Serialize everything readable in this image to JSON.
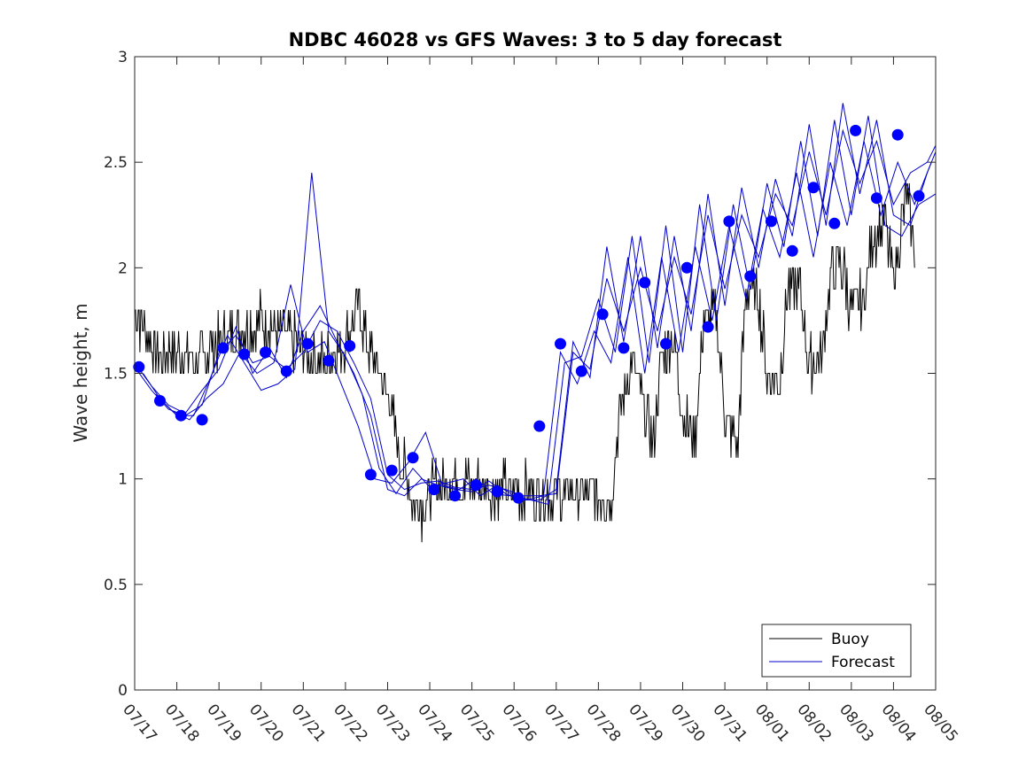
{
  "chart_data": {
    "type": "line",
    "title": "NDBC 46028 vs GFS Waves: 3 to 5 day forecast",
    "xlabel": "",
    "ylabel": "Wave height, m",
    "xlim": [
      0,
      19
    ],
    "ylim": [
      0,
      3
    ],
    "x_tick_labels": [
      "07/17",
      "07/18",
      "07/19",
      "07/20",
      "07/21",
      "07/22",
      "07/23",
      "07/24",
      "07/25",
      "07/26",
      "07/27",
      "07/28",
      "07/29",
      "07/30",
      "07/31",
      "08/01",
      "08/02",
      "08/03",
      "08/04",
      "08/05"
    ],
    "y_ticks": [
      0,
      0.5,
      1,
      1.5,
      2,
      2.5,
      3
    ],
    "y_tick_labels": [
      "0",
      "0.5",
      "1",
      "1.5",
      "2",
      "2.5",
      "3"
    ],
    "grid": false,
    "legend": {
      "placement": "bottom-right",
      "entries": [
        "Buoy",
        "Forecast"
      ]
    },
    "colors": {
      "buoy": "#000000",
      "forecast": "#0000cc",
      "markers": "#0000ff"
    },
    "buoy_keypoints": {
      "x": [
        0,
        0.5,
        1,
        1.5,
        2,
        2.5,
        3,
        3.5,
        4,
        4.5,
        5,
        5.3,
        5.6,
        6,
        6.3,
        6.6,
        6.9,
        7,
        7.5,
        8,
        8.5,
        9,
        9.5,
        10,
        10.5,
        11,
        11.3,
        11.5,
        11.8,
        12,
        12.3,
        12.5,
        12.8,
        13,
        13.3,
        13.5,
        13.8,
        14,
        14.3,
        14.5,
        14.8,
        15,
        15.3,
        15.5,
        15.8,
        16,
        16.3,
        16.5,
        16.8,
        17,
        17.3,
        17.5,
        17.8,
        18,
        18.3,
        18.5
      ],
      "y": [
        1.8,
        1.6,
        1.6,
        1.55,
        1.65,
        1.7,
        1.75,
        1.7,
        1.6,
        1.55,
        1.65,
        1.8,
        1.6,
        1.4,
        1.1,
        0.9,
        0.85,
        0.95,
        1.0,
        0.97,
        0.96,
        0.95,
        0.93,
        0.93,
        0.93,
        0.93,
        0.9,
        1.3,
        1.55,
        1.4,
        1.15,
        1.6,
        1.65,
        1.3,
        1.2,
        1.75,
        1.8,
        1.3,
        1.15,
        1.9,
        1.85,
        1.5,
        1.45,
        1.9,
        1.9,
        1.55,
        1.55,
        1.95,
        2.0,
        1.8,
        1.85,
        2.15,
        2.2,
        1.95,
        2.35,
        2.1
      ]
    },
    "forecast_points": {
      "x": [
        0.1,
        0.6,
        1.1,
        1.6,
        2.1,
        2.6,
        3.1,
        3.6,
        4.1,
        4.6,
        5.1,
        5.6,
        6.1,
        6.6,
        7.1,
        7.6,
        8.1,
        8.6,
        9.1,
        9.6,
        10.1,
        10.6,
        11.1,
        11.6,
        12.1,
        12.6,
        13.1,
        13.6,
        14.1,
        14.6,
        15.1,
        15.6,
        16.1,
        16.6,
        17.1,
        17.6,
        18.1,
        18.6
      ],
      "y": [
        1.53,
        1.37,
        1.3,
        1.28,
        1.62,
        1.59,
        1.6,
        1.51,
        1.64,
        1.56,
        1.63,
        1.02,
        1.04,
        1.1,
        0.95,
        0.92,
        0.97,
        0.94,
        0.91,
        1.25,
        1.64,
        1.51,
        1.78,
        1.62,
        1.93,
        1.64,
        2.0,
        1.72,
        2.22,
        1.96,
        2.22,
        2.08,
        2.38,
        2.21,
        2.65,
        2.33,
        2.63,
        2.34
      ]
    },
    "forecast_runs": [
      {
        "x": [
          0.0,
          0.4,
          0.8,
          1.2,
          1.6,
          2.0,
          2.4,
          2.8,
          3.2,
          3.6,
          4.0,
          4.4,
          4.8,
          5.2,
          5.6,
          6.0,
          6.4,
          6.8,
          7.2,
          7.6,
          8.0,
          8.4,
          8.8,
          9.2,
          9.6,
          10.0,
          10.4,
          10.8,
          11.2,
          11.6,
          12.0,
          12.4,
          12.8,
          13.2,
          13.6,
          14.0,
          14.4,
          14.8,
          15.2,
          15.6,
          16.0,
          16.4,
          16.8,
          17.2,
          17.6,
          18.0,
          18.4,
          18.8,
          19.0
        ],
        "y": [
          1.53,
          1.42,
          1.33,
          1.3,
          1.35,
          1.6,
          1.68,
          1.55,
          1.58,
          1.52,
          1.6,
          1.75,
          1.7,
          1.55,
          1.38,
          1.02,
          0.95,
          0.98,
          0.99,
          0.96,
          0.95,
          0.97,
          0.95,
          0.92,
          0.92,
          0.93,
          1.6,
          1.52,
          1.95,
          1.7,
          2.0,
          1.7,
          2.05,
          1.78,
          2.25,
          1.9,
          2.25,
          2.05,
          2.35,
          2.2,
          2.55,
          2.25,
          2.65,
          2.4,
          2.6,
          2.3,
          2.45,
          2.5,
          2.58
        ]
      },
      {
        "x": [
          0.0,
          0.4,
          0.8,
          1.2,
          1.6,
          2.0,
          2.4,
          2.8,
          3.2,
          3.6,
          4.0,
          4.4,
          4.8,
          5.2,
          5.6,
          6.0,
          6.4,
          6.8,
          7.2,
          7.6,
          8.0,
          8.4,
          8.8,
          9.2,
          9.6,
          10.0,
          10.4,
          10.8,
          11.2,
          11.6,
          12.0,
          12.4,
          12.8,
          13.2,
          13.6,
          14.0,
          14.4,
          14.8,
          15.2,
          15.6,
          16.0,
          16.4,
          16.8,
          17.2,
          17.6,
          18.0,
          18.4,
          18.8,
          19.0
        ],
        "y": [
          1.55,
          1.44,
          1.35,
          1.31,
          1.42,
          1.52,
          1.72,
          1.5,
          1.62,
          1.48,
          1.7,
          1.82,
          1.65,
          1.5,
          1.3,
          0.95,
          0.92,
          1.0,
          0.97,
          0.95,
          0.94,
          0.99,
          0.93,
          0.9,
          0.9,
          0.95,
          1.65,
          1.48,
          2.1,
          1.65,
          2.15,
          1.62,
          2.15,
          1.7,
          2.35,
          1.82,
          2.38,
          2.0,
          2.42,
          2.15,
          2.68,
          2.2,
          2.78,
          2.35,
          2.7,
          2.25,
          2.2,
          2.45,
          2.55
        ]
      },
      {
        "x": [
          0.2,
          0.6,
          1.0,
          1.4,
          1.8,
          2.2,
          2.6,
          3.0,
          3.4,
          3.8,
          4.2,
          4.6,
          5.0,
          5.4,
          5.8,
          6.2,
          6.6,
          7.0,
          7.4,
          7.8,
          8.2,
          8.6,
          9.0,
          9.4,
          9.8,
          10.2,
          10.6,
          11.0,
          11.4,
          11.8,
          12.2,
          12.6,
          13.0,
          13.4,
          13.8,
          14.2,
          14.6,
          15.0,
          15.4,
          15.8,
          16.2,
          16.6,
          17.0,
          17.4,
          17.8,
          18.2,
          18.6,
          19.0
        ],
        "y": [
          1.5,
          1.38,
          1.3,
          1.3,
          1.48,
          1.68,
          1.55,
          1.42,
          1.45,
          1.52,
          2.45,
          1.7,
          1.58,
          1.4,
          1.05,
          0.93,
          1.05,
          0.96,
          0.98,
          1.0,
          0.92,
          0.97,
          0.92,
          0.9,
          0.88,
          1.55,
          1.58,
          1.85,
          1.6,
          2.15,
          1.55,
          2.2,
          1.6,
          2.3,
          1.75,
          2.3,
          1.9,
          2.4,
          2.1,
          2.6,
          2.15,
          2.7,
          2.25,
          2.72,
          2.2,
          2.15,
          2.3,
          2.35
        ]
      },
      {
        "x": [
          0.5,
          0.9,
          1.3,
          1.7,
          2.1,
          2.5,
          2.9,
          3.3,
          3.7,
          4.1,
          4.5,
          4.9,
          5.3,
          5.7,
          6.1,
          6.5,
          6.9,
          7.3,
          7.7,
          8.1,
          8.5,
          8.9,
          9.3,
          9.7,
          10.1,
          10.5,
          10.9,
          11.3,
          11.7,
          12.1,
          12.5,
          12.9,
          13.3,
          13.7,
          14.1,
          14.5,
          14.9,
          15.3,
          15.7,
          16.1,
          16.5,
          16.9,
          17.3,
          17.7,
          18.1,
          18.5,
          18.9
        ],
        "y": [
          1.4,
          1.32,
          1.28,
          1.38,
          1.45,
          1.6,
          1.5,
          1.55,
          1.92,
          1.6,
          1.65,
          1.45,
          1.25,
          1.0,
          0.98,
          1.08,
          1.22,
          0.97,
          0.95,
          1.0,
          0.93,
          0.92,
          0.9,
          0.92,
          1.6,
          1.45,
          1.7,
          1.55,
          2.05,
          1.5,
          2.05,
          1.6,
          2.1,
          1.75,
          2.2,
          1.85,
          2.28,
          2.05,
          2.45,
          2.05,
          2.5,
          2.2,
          2.6,
          2.25,
          2.5,
          2.3,
          2.5
        ]
      }
    ]
  }
}
